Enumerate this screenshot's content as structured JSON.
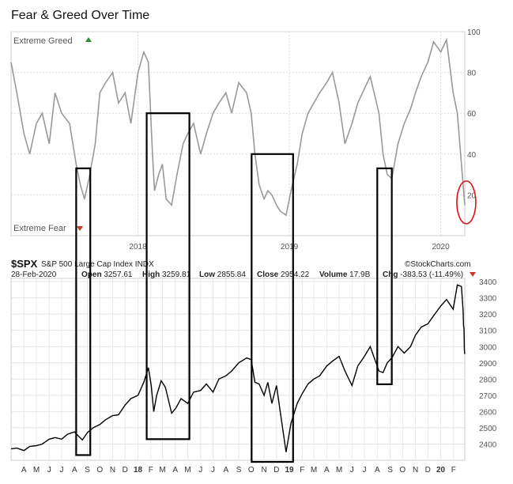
{
  "chart_data": [
    {
      "type": "line",
      "title": "Fear & Greed Over Time",
      "upper_label": "Extreme Greed",
      "lower_label": "Extreme Fear",
      "ylim": [
        0,
        100
      ],
      "y_ticks": [
        20,
        40,
        60,
        80,
        100
      ],
      "xlim": [
        "2017-03-01",
        "2020-02-28"
      ],
      "x_ticks": [
        {
          "x": "2018-01-01",
          "label": "2018"
        },
        {
          "x": "2019-01-01",
          "label": "2019"
        },
        {
          "x": "2020-01-01",
          "label": "2020"
        }
      ],
      "grid": true,
      "line_color": "#999999",
      "greed_color": "#2e8b2e",
      "fear_color": "#c0392b",
      "series": [
        {
          "x": [
            "2017-03-01",
            "2017-03-15",
            "2017-04-01",
            "2017-04-15",
            "2017-05-01",
            "2017-05-15",
            "2017-06-01",
            "2017-06-15",
            "2017-07-01",
            "2017-07-20",
            "2017-08-05",
            "2017-08-15",
            "2017-08-25",
            "2017-09-05",
            "2017-09-20",
            "2017-10-01",
            "2017-10-15",
            "2017-11-01",
            "2017-11-15",
            "2017-12-01",
            "2017-12-15",
            "2018-01-01",
            "2018-01-15",
            "2018-01-26",
            "2018-02-05",
            "2018-02-10",
            "2018-02-20",
            "2018-03-01",
            "2018-03-10",
            "2018-03-23",
            "2018-04-05",
            "2018-04-20",
            "2018-05-01",
            "2018-05-15",
            "2018-06-01",
            "2018-06-15",
            "2018-07-01",
            "2018-07-15",
            "2018-08-01",
            "2018-08-15",
            "2018-09-01",
            "2018-09-20",
            "2018-10-01",
            "2018-10-10",
            "2018-10-20",
            "2018-11-01",
            "2018-11-10",
            "2018-11-20",
            "2018-12-01",
            "2018-12-10",
            "2018-12-24",
            "2019-01-05",
            "2019-01-20",
            "2019-02-01",
            "2019-02-15",
            "2019-03-01",
            "2019-03-15",
            "2019-04-01",
            "2019-04-15",
            "2019-05-01",
            "2019-05-15",
            "2019-06-01",
            "2019-06-15",
            "2019-07-01",
            "2019-07-15",
            "2019-08-05",
            "2019-08-15",
            "2019-08-25",
            "2019-09-05",
            "2019-09-20",
            "2019-10-05",
            "2019-10-20",
            "2019-11-01",
            "2019-11-15",
            "2019-12-01",
            "2019-12-15",
            "2020-01-01",
            "2020-01-15",
            "2020-01-31",
            "2020-02-10",
            "2020-02-20",
            "2020-02-28"
          ],
          "values": [
            85,
            70,
            50,
            40,
            55,
            60,
            45,
            70,
            60,
            55,
            35,
            25,
            18,
            28,
            45,
            70,
            75,
            80,
            65,
            70,
            55,
            80,
            90,
            85,
            40,
            22,
            30,
            35,
            18,
            15,
            30,
            45,
            50,
            55,
            40,
            50,
            60,
            65,
            70,
            60,
            75,
            70,
            60,
            40,
            25,
            18,
            22,
            20,
            15,
            12,
            10,
            22,
            35,
            50,
            60,
            65,
            70,
            75,
            80,
            65,
            45,
            55,
            65,
            72,
            78,
            60,
            40,
            30,
            28,
            45,
            55,
            62,
            70,
            78,
            85,
            95,
            90,
            96,
            70,
            60,
            35,
            15
          ]
        }
      ]
    },
    {
      "type": "line",
      "symbol": "$SPX",
      "name": "S&P 500 Large Cap Index",
      "exchange": "INDX",
      "date": "28-Feb-2020",
      "open_label": "Open",
      "open": "3257.61",
      "high_label": "High",
      "high": "3259.81",
      "low_label": "Low",
      "low": "2855.84",
      "close_label": "Close",
      "close": "2954.22",
      "volume_label": "Volume",
      "volume": "17.9B",
      "chg_label": "Chg",
      "chg": "-383.53 (-11.49%)",
      "watermark": "©StockCharts.com",
      "ylim": [
        2300,
        3420
      ],
      "y_ticks": [
        2400,
        2500,
        2600,
        2700,
        2800,
        2900,
        3000,
        3100,
        3200,
        3300,
        3400
      ],
      "xlim": [
        "2017-03-01",
        "2020-02-28"
      ],
      "month_ticks": [
        {
          "x": "2017-04-01",
          "label": "A"
        },
        {
          "x": "2017-05-01",
          "label": "M"
        },
        {
          "x": "2017-06-01",
          "label": "J"
        },
        {
          "x": "2017-07-01",
          "label": "J"
        },
        {
          "x": "2017-08-01",
          "label": "A"
        },
        {
          "x": "2017-09-01",
          "label": "S"
        },
        {
          "x": "2017-10-01",
          "label": "O"
        },
        {
          "x": "2017-11-01",
          "label": "N"
        },
        {
          "x": "2017-12-01",
          "label": "D"
        },
        {
          "x": "2018-01-01",
          "label": "18",
          "bold": true
        },
        {
          "x": "2018-02-01",
          "label": "F"
        },
        {
          "x": "2018-03-01",
          "label": "M"
        },
        {
          "x": "2018-04-01",
          "label": "A"
        },
        {
          "x": "2018-05-01",
          "label": "M"
        },
        {
          "x": "2018-06-01",
          "label": "J"
        },
        {
          "x": "2018-07-01",
          "label": "J"
        },
        {
          "x": "2018-08-01",
          "label": "A"
        },
        {
          "x": "2018-09-01",
          "label": "S"
        },
        {
          "x": "2018-10-01",
          "label": "O"
        },
        {
          "x": "2018-11-01",
          "label": "N"
        },
        {
          "x": "2018-12-01",
          "label": "D"
        },
        {
          "x": "2019-01-01",
          "label": "19",
          "bold": true
        },
        {
          "x": "2019-02-01",
          "label": "F"
        },
        {
          "x": "2019-03-01",
          "label": "M"
        },
        {
          "x": "2019-04-01",
          "label": "A"
        },
        {
          "x": "2019-05-01",
          "label": "M"
        },
        {
          "x": "2019-06-01",
          "label": "J"
        },
        {
          "x": "2019-07-01",
          "label": "J"
        },
        {
          "x": "2019-08-01",
          "label": "A"
        },
        {
          "x": "2019-09-01",
          "label": "S"
        },
        {
          "x": "2019-10-01",
          "label": "O"
        },
        {
          "x": "2019-11-01",
          "label": "N"
        },
        {
          "x": "2019-12-01",
          "label": "D"
        },
        {
          "x": "2020-01-01",
          "label": "20",
          "bold": true
        },
        {
          "x": "2020-02-01",
          "label": "F"
        }
      ],
      "grid": true,
      "line_color": "#000000",
      "series": [
        {
          "x": [
            "2017-03-01",
            "2017-03-15",
            "2017-04-01",
            "2017-04-15",
            "2017-05-01",
            "2017-05-15",
            "2017-06-01",
            "2017-06-15",
            "2017-07-01",
            "2017-07-15",
            "2017-08-01",
            "2017-08-10",
            "2017-08-20",
            "2017-09-01",
            "2017-09-15",
            "2017-10-01",
            "2017-10-15",
            "2017-11-01",
            "2017-11-15",
            "2017-12-01",
            "2017-12-15",
            "2018-01-01",
            "2018-01-15",
            "2018-01-26",
            "2018-02-02",
            "2018-02-08",
            "2018-02-15",
            "2018-02-26",
            "2018-03-08",
            "2018-03-23",
            "2018-04-02",
            "2018-04-15",
            "2018-05-01",
            "2018-05-15",
            "2018-06-01",
            "2018-06-15",
            "2018-07-01",
            "2018-07-15",
            "2018-08-01",
            "2018-08-15",
            "2018-09-01",
            "2018-09-20",
            "2018-10-01",
            "2018-10-10",
            "2018-10-20",
            "2018-11-01",
            "2018-11-10",
            "2018-11-20",
            "2018-12-01",
            "2018-12-10",
            "2018-12-24",
            "2019-01-05",
            "2019-01-20",
            "2019-02-01",
            "2019-02-15",
            "2019-03-01",
            "2019-03-15",
            "2019-04-01",
            "2019-04-15",
            "2019-05-01",
            "2019-05-15",
            "2019-06-01",
            "2019-06-15",
            "2019-07-01",
            "2019-07-15",
            "2019-08-05",
            "2019-08-15",
            "2019-08-25",
            "2019-09-05",
            "2019-09-20",
            "2019-10-05",
            "2019-10-20",
            "2019-11-01",
            "2019-11-15",
            "2019-12-01",
            "2019-12-15",
            "2020-01-01",
            "2020-01-15",
            "2020-01-31",
            "2020-02-10",
            "2020-02-20",
            "2020-02-24",
            "2020-02-25",
            "2020-02-26",
            "2020-02-27",
            "2020-02-28"
          ],
          "values": [
            2370,
            2375,
            2360,
            2385,
            2390,
            2400,
            2430,
            2440,
            2430,
            2460,
            2475,
            2450,
            2425,
            2470,
            2500,
            2520,
            2550,
            2575,
            2580,
            2640,
            2680,
            2700,
            2780,
            2870,
            2760,
            2600,
            2700,
            2790,
            2750,
            2590,
            2620,
            2680,
            2650,
            2720,
            2730,
            2770,
            2720,
            2800,
            2820,
            2850,
            2900,
            2930,
            2920,
            2780,
            2770,
            2700,
            2780,
            2650,
            2760,
            2600,
            2350,
            2530,
            2650,
            2710,
            2770,
            2800,
            2820,
            2880,
            2910,
            2940,
            2850,
            2760,
            2880,
            2940,
            3000,
            2850,
            2840,
            2900,
            2930,
            3000,
            2960,
            3000,
            3070,
            3120,
            3140,
            3190,
            3250,
            3290,
            3230,
            3380,
            3370,
            3220,
            3130,
            3110,
            2980,
            2954
          ]
        }
      ]
    }
  ],
  "highlight_boxes": [
    {
      "x0": "2017-08-05",
      "x1": "2017-09-08",
      "top": 33,
      "bottom": 2332,
      "color": "#000000"
    },
    {
      "x0": "2018-01-22",
      "x1": "2018-05-05",
      "top": 60,
      "bottom": 2430,
      "color": "#000000"
    },
    {
      "x0": "2018-10-02",
      "x1": "2019-01-10",
      "top": 40,
      "bottom": 2290,
      "color": "#000000"
    },
    {
      "x0": "2019-08-01",
      "x1": "2019-09-05",
      "top": 33,
      "bottom": 2768,
      "color": "#000000"
    }
  ],
  "highlight_circle": {
    "x": "2020-02-24",
    "value": 14,
    "color": "#e01010"
  }
}
